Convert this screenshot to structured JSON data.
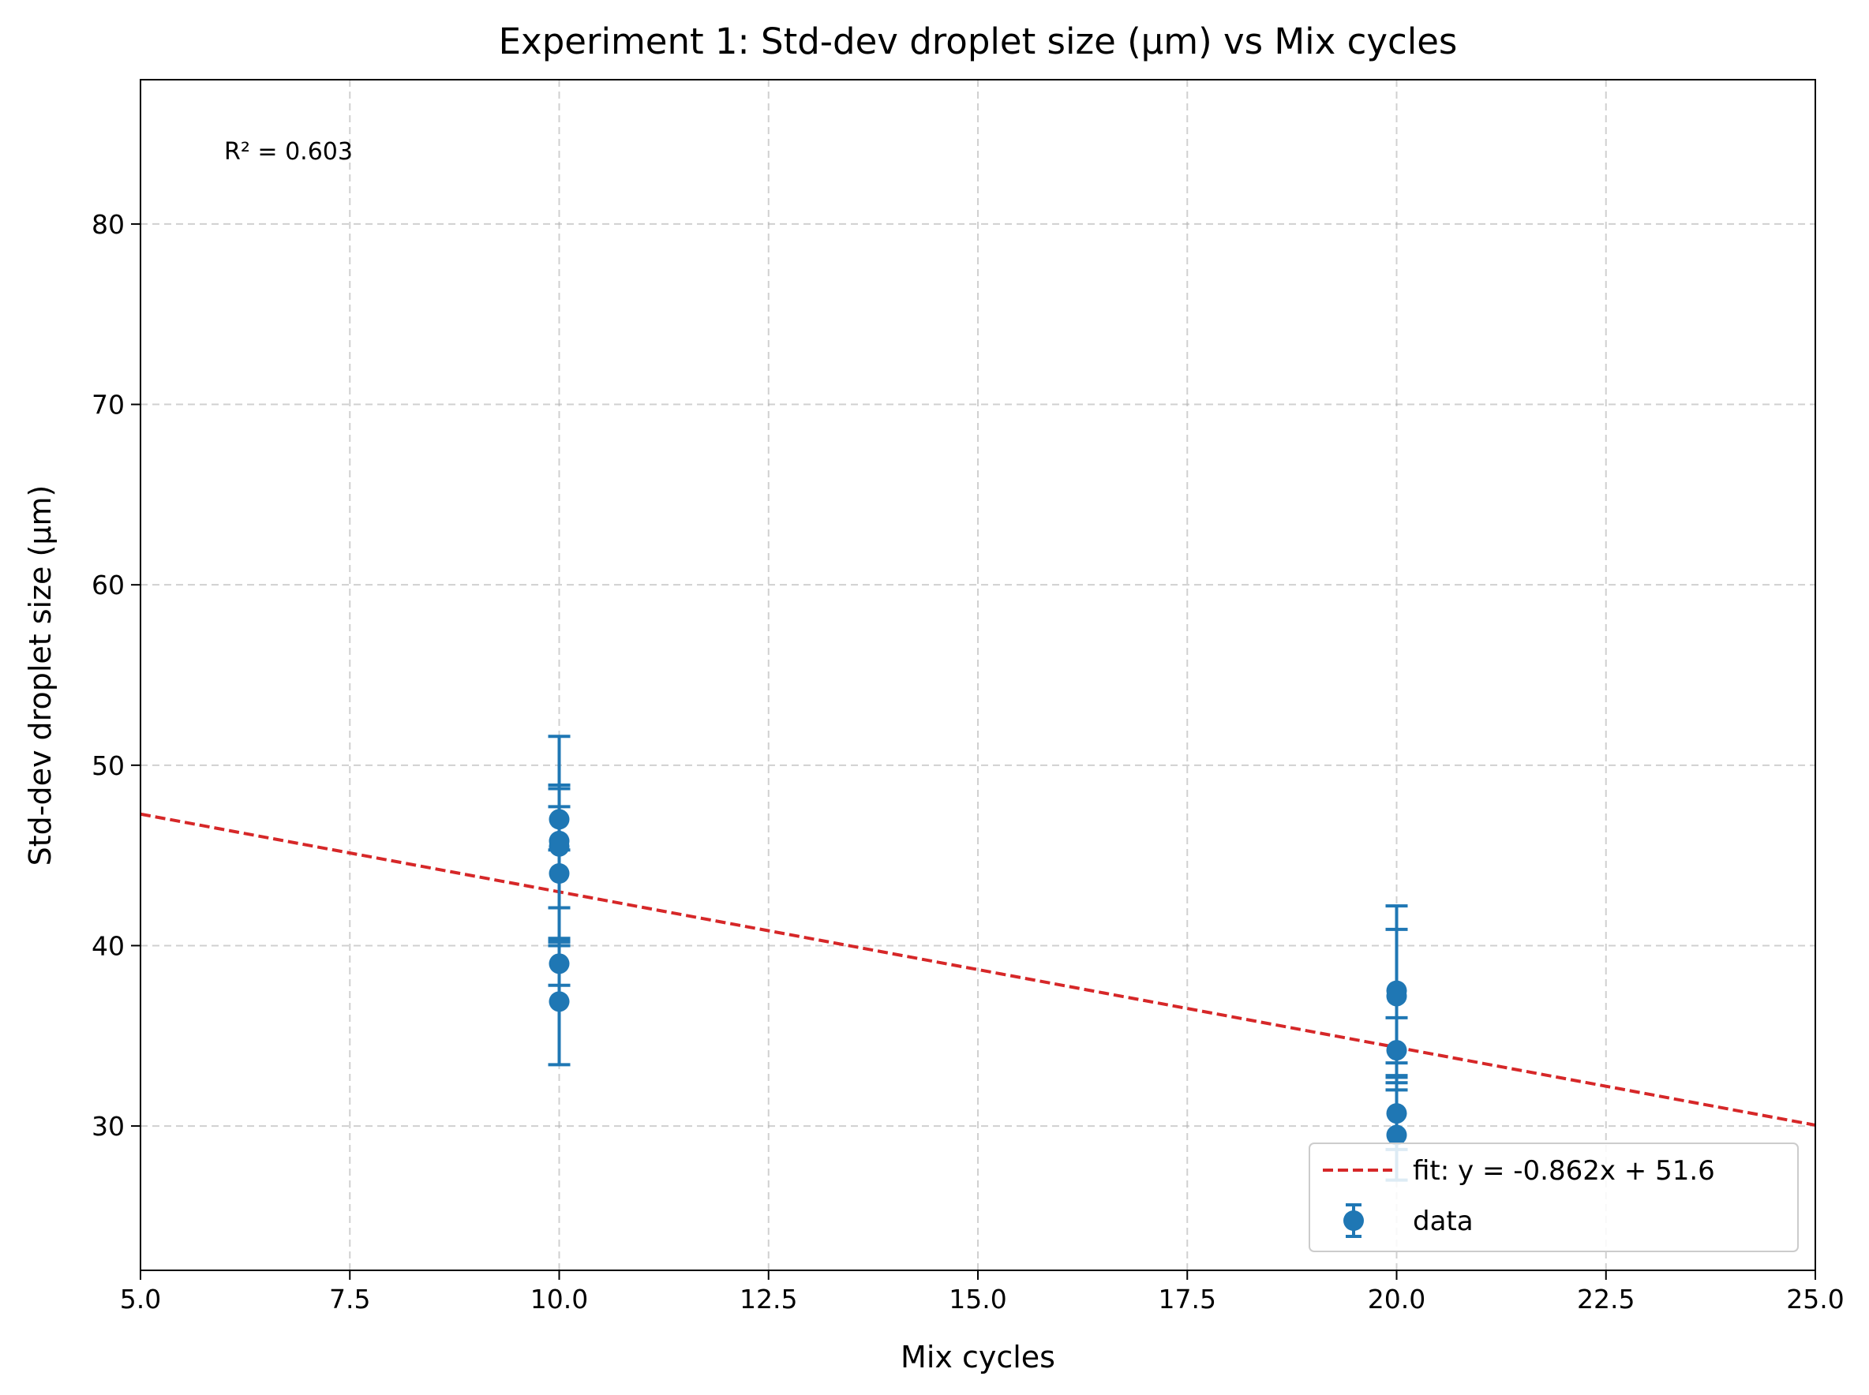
{
  "chart_data": {
    "type": "scatter",
    "title": "Experiment 1: Std-dev droplet size (µm) vs Mix cycles",
    "xlabel": "Mix cycles",
    "ylabel": "Std-dev droplet size (µm)",
    "xlim": [
      5.0,
      25.0
    ],
    "ylim": [
      22.0,
      88.0
    ],
    "xticks": [
      5.0,
      7.5,
      10.0,
      12.5,
      15.0,
      17.5,
      20.0,
      22.5,
      25.0
    ],
    "xtick_labels": [
      "5.0",
      "7.5",
      "10.0",
      "12.5",
      "15.0",
      "17.5",
      "20.0",
      "22.5",
      "25.0"
    ],
    "yticks": [
      30,
      40,
      50,
      60,
      70,
      80
    ],
    "ytick_labels": [
      "30",
      "40",
      "50",
      "60",
      "70",
      "80"
    ],
    "grid": true,
    "legend_position": "lower-right",
    "annotation": "R² = 0.603",
    "series": [
      {
        "name": "data",
        "kind": "errorbar-scatter",
        "color": "#1f77b4",
        "points": [
          {
            "x": 10,
            "y": 47.0,
            "err": 1.7
          },
          {
            "x": 10,
            "y": 45.8,
            "err": 5.8
          },
          {
            "x": 10,
            "y": 45.5,
            "err": 3.4
          },
          {
            "x": 10,
            "y": 44.0,
            "err": 3.7
          },
          {
            "x": 10,
            "y": 39.0,
            "err": 1.2
          },
          {
            "x": 10,
            "y": 36.9,
            "err": 3.5
          },
          {
            "x": 20,
            "y": 37.5,
            "err": 4.7
          },
          {
            "x": 20,
            "y": 37.2,
            "err": 3.7
          },
          {
            "x": 20,
            "y": 34.2,
            "err": 1.8
          },
          {
            "x": 20,
            "y": 30.7,
            "err": 2.0
          },
          {
            "x": 20,
            "y": 29.5,
            "err": 2.5
          }
        ]
      },
      {
        "name": "fit: y = -0.862x + 51.6",
        "kind": "line",
        "style": "dashed",
        "color": "#d62728",
        "slope": -0.862,
        "intercept": 51.6
      }
    ]
  }
}
